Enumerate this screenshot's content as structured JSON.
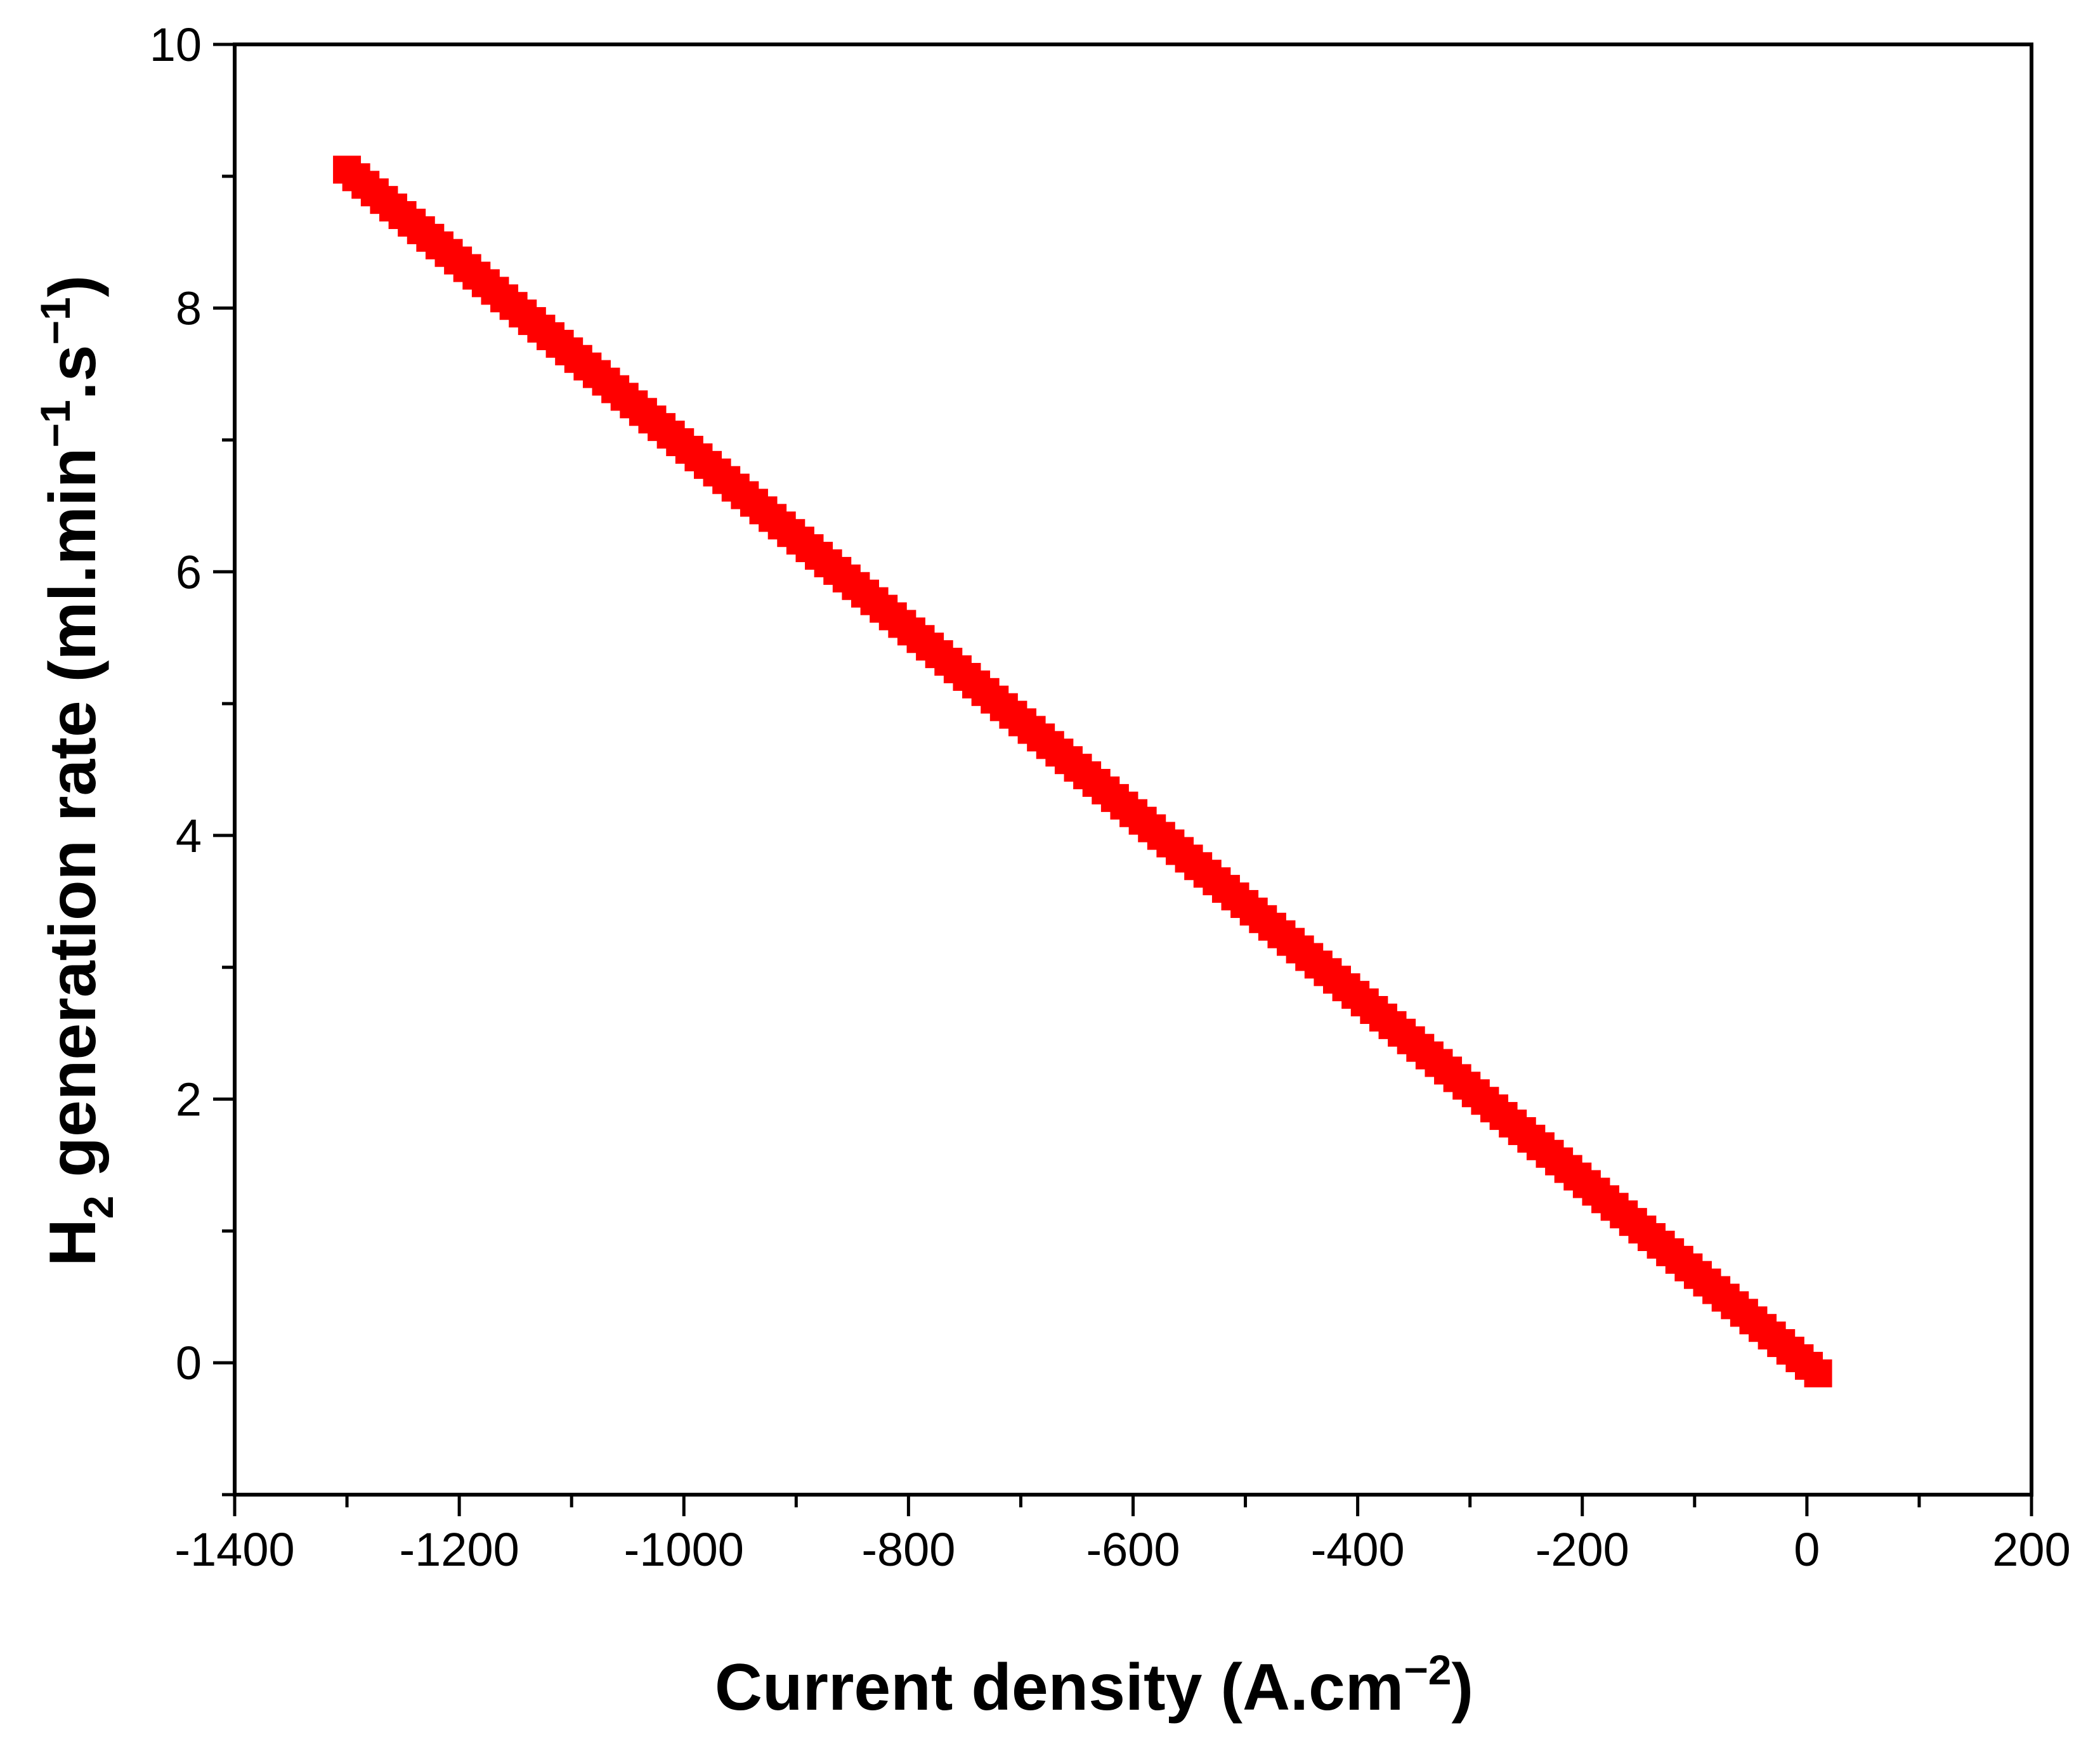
{
  "chart_data": {
    "type": "scatter",
    "title": "",
    "xlabel": {
      "text": "Current density (A.cm",
      "superscript": "−2",
      "tail": ")"
    },
    "ylabel": {
      "prefix": "H",
      "subscript": "2",
      "mid": " generation rate (ml.min",
      "sup1": "−1",
      "mid2": ".s",
      "sup2": "−1",
      "tail": ")"
    },
    "xlim": [
      -1400,
      200
    ],
    "ylim": [
      -1,
      10
    ],
    "xticks": [
      -1400,
      -1200,
      -1000,
      -800,
      -600,
      -400,
      -200,
      0,
      200
    ],
    "yticks": [
      0,
      2,
      4,
      6,
      8,
      10
    ],
    "x_minor_step": 100,
    "y_minor_step": 1,
    "marker": "square",
    "marker_color": "#ff0000",
    "grid": false,
    "series": [
      {
        "x_start": -1300,
        "x_end": 10,
        "y_start": 9.05,
        "y_end": -0.08,
        "points": 160
      }
    ]
  }
}
